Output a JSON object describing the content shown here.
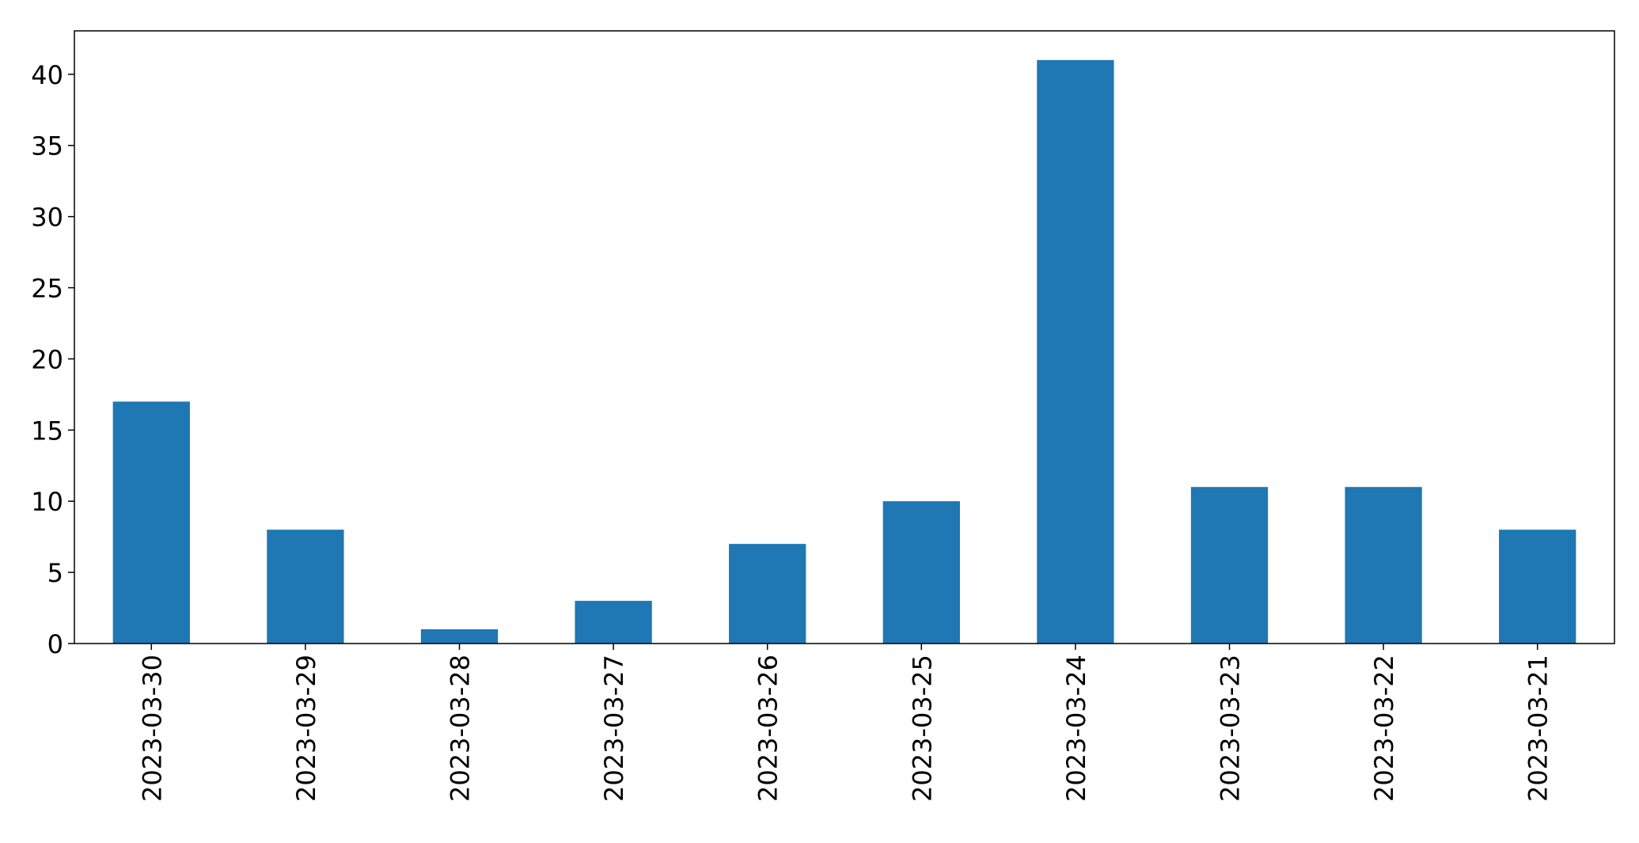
{
  "chart_data": {
    "type": "bar",
    "categories": [
      "2023-03-30",
      "2023-03-29",
      "2023-03-28",
      "2023-03-27",
      "2023-03-26",
      "2023-03-25",
      "2023-03-24",
      "2023-03-23",
      "2023-03-22",
      "2023-03-21"
    ],
    "values": [
      17,
      8,
      1,
      3,
      7,
      10,
      41,
      11,
      11,
      8
    ],
    "title": "",
    "xlabel": "",
    "ylabel": "",
    "ylim": [
      0,
      43.05
    ],
    "yticks": [
      0,
      5,
      10,
      15,
      20,
      25,
      30,
      35,
      40
    ],
    "bar_color": "#1f77b4",
    "grid": false,
    "legend": "none",
    "x_tick_rotation": "vertical"
  }
}
